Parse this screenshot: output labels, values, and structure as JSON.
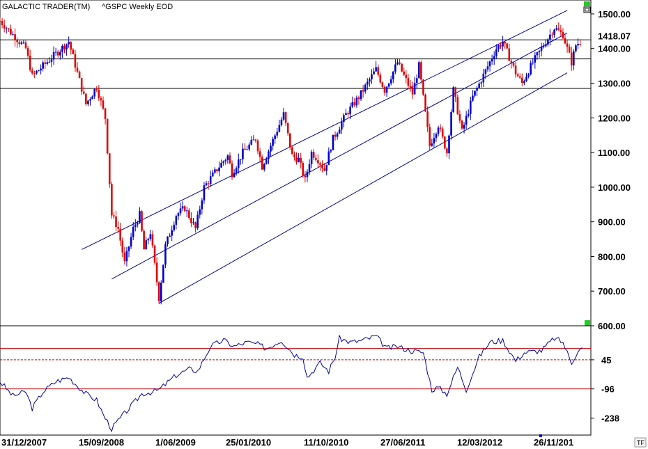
{
  "header": {
    "brand": "GALACTIC TRADER(TM)",
    "symbol": "^GSPC Weekly EOD"
  },
  "corner_label": "TF",
  "colors": {
    "up": "#0000cc",
    "down": "#e00000",
    "level": "#000000",
    "channel": "#0000aa",
    "osc_line": "#0000aa",
    "osc_ref": "#cc0000",
    "marker": "#22cc22"
  },
  "chart_data": [
    {
      "type": "candlestick",
      "title": "^GSPC Weekly EOD",
      "ylim": [
        600,
        1520
      ],
      "y_ticks": [
        "1500.00",
        "1400.00",
        "1300.00",
        "1200.00",
        "1100.00",
        "1000.00",
        "900.00",
        "800.00",
        "700.00",
        "600.00"
      ],
      "x_labels": [
        "31/12/2007",
        "15/09/2008",
        "1/06/2009",
        "25/01/2010",
        "11/10/2010",
        "27/06/2011",
        "12/03/2012",
        "26/11/201"
      ],
      "last_value_label": "1418.07",
      "horizontal_levels": [
        1425,
        1370,
        1285
      ],
      "channel_lines": [
        {
          "from": [
            "2008-06-30",
            820
          ],
          "to": [
            "2012-10-29",
            1510
          ]
        },
        {
          "from": [
            "2008-10-06",
            735
          ],
          "to": [
            "2012-10-29",
            1445
          ]
        },
        {
          "from": [
            "2009-03-09",
            665
          ],
          "to": [
            "2012-10-29",
            1330
          ]
        }
      ],
      "anchors": [
        [
          "2007-10-08",
          1480
        ],
        [
          "2007-12-31",
          1400
        ],
        [
          "2008-01-21",
          1320
        ],
        [
          "2008-02-25",
          1350
        ],
        [
          "2008-05-19",
          1420
        ],
        [
          "2008-07-14",
          1240
        ],
        [
          "2008-08-18",
          1290
        ],
        [
          "2008-09-15",
          1200
        ],
        [
          "2008-10-06",
          920
        ],
        [
          "2008-10-27",
          880
        ],
        [
          "2008-11-17",
          780
        ],
        [
          "2008-12-15",
          880
        ],
        [
          "2009-01-05",
          920
        ],
        [
          "2009-01-19",
          820
        ],
        [
          "2009-02-09",
          870
        ],
        [
          "2009-03-09",
          680
        ],
        [
          "2009-03-30",
          830
        ],
        [
          "2009-05-04",
          920
        ],
        [
          "2009-06-01",
          940
        ],
        [
          "2009-07-06",
          880
        ],
        [
          "2009-08-03",
          1000
        ],
        [
          "2009-09-21",
          1060
        ],
        [
          "2009-10-19",
          1090
        ],
        [
          "2009-11-02",
          1040
        ],
        [
          "2009-12-07",
          1100
        ],
        [
          "2010-01-18",
          1140
        ],
        [
          "2010-02-08",
          1060
        ],
        [
          "2010-04-19",
          1210
        ],
        [
          "2010-05-17",
          1090
        ],
        [
          "2010-06-07",
          1080
        ],
        [
          "2010-06-28",
          1020
        ],
        [
          "2010-07-19",
          1100
        ],
        [
          "2010-08-09",
          1080
        ],
        [
          "2010-08-30",
          1050
        ],
        [
          "2010-09-27",
          1140
        ],
        [
          "2010-11-08",
          1210
        ],
        [
          "2010-12-20",
          1260
        ],
        [
          "2011-02-14",
          1340
        ],
        [
          "2011-03-14",
          1280
        ],
        [
          "2011-04-25",
          1360
        ],
        [
          "2011-06-13",
          1270
        ],
        [
          "2011-07-04",
          1350
        ],
        [
          "2011-08-08",
          1120
        ],
        [
          "2011-09-05",
          1180
        ],
        [
          "2011-10-03",
          1100
        ],
        [
          "2011-10-24",
          1280
        ],
        [
          "2011-11-21",
          1160
        ],
        [
          "2011-12-26",
          1260
        ],
        [
          "2012-01-23",
          1310
        ],
        [
          "2012-03-12",
          1400
        ],
        [
          "2012-04-02",
          1420
        ],
        [
          "2012-05-14",
          1330
        ],
        [
          "2012-06-04",
          1300
        ],
        [
          "2012-07-09",
          1360
        ],
        [
          "2012-08-13",
          1410
        ],
        [
          "2012-09-17",
          1460
        ],
        [
          "2012-10-15",
          1440
        ],
        [
          "2012-11-12",
          1360
        ],
        [
          "2012-11-26",
          1410
        ],
        [
          "2012-12-10",
          1420
        ]
      ]
    },
    {
      "type": "line",
      "title": "oscillator",
      "y_ticks": [
        "45",
        "-96",
        "-238"
      ],
      "reference_levels": [
        100,
        45,
        -96
      ],
      "anchors": [
        [
          "2007-10-08",
          -60
        ],
        [
          "2007-11-19",
          -130
        ],
        [
          "2007-12-31",
          -110
        ],
        [
          "2008-01-21",
          -190
        ],
        [
          "2008-02-25",
          -110
        ],
        [
          "2008-04-07",
          -60
        ],
        [
          "2008-05-19",
          -40
        ],
        [
          "2008-07-14",
          -120
        ],
        [
          "2008-08-18",
          -150
        ],
        [
          "2008-09-08",
          -220
        ],
        [
          "2008-10-06",
          -290
        ],
        [
          "2008-10-27",
          -250
        ],
        [
          "2008-12-08",
          -180
        ],
        [
          "2009-01-12",
          -120
        ],
        [
          "2009-02-16",
          -110
        ],
        [
          "2009-03-09",
          -100
        ],
        [
          "2009-05-04",
          -30
        ],
        [
          "2009-06-15",
          0
        ],
        [
          "2009-07-13",
          -10
        ],
        [
          "2009-08-24",
          110
        ],
        [
          "2009-10-05",
          140
        ],
        [
          "2009-11-09",
          110
        ],
        [
          "2009-12-21",
          130
        ],
        [
          "2010-01-25",
          120
        ],
        [
          "2010-02-22",
          100
        ],
        [
          "2010-04-12",
          140
        ],
        [
          "2010-05-24",
          70
        ],
        [
          "2010-06-21",
          60
        ],
        [
          "2010-07-05",
          -40
        ],
        [
          "2010-08-16",
          30
        ],
        [
          "2010-09-13",
          -10
        ],
        [
          "2010-10-04",
          60
        ],
        [
          "2010-10-18",
          150
        ],
        [
          "2010-11-22",
          130
        ],
        [
          "2011-01-03",
          140
        ],
        [
          "2011-02-14",
          160
        ],
        [
          "2011-03-21",
          100
        ],
        [
          "2011-04-25",
          110
        ],
        [
          "2011-06-06",
          90
        ],
        [
          "2011-07-18",
          80
        ],
        [
          "2011-08-15",
          -100
        ],
        [
          "2011-09-05",
          -90
        ],
        [
          "2011-10-03",
          -120
        ],
        [
          "2011-11-07",
          10
        ],
        [
          "2011-12-05",
          -100
        ],
        [
          "2012-01-16",
          60
        ],
        [
          "2012-02-20",
          130
        ],
        [
          "2012-04-02",
          140
        ],
        [
          "2012-05-14",
          40
        ],
        [
          "2012-06-11",
          80
        ],
        [
          "2012-08-06",
          90
        ],
        [
          "2012-09-17",
          150
        ],
        [
          "2012-10-15",
          130
        ],
        [
          "2012-11-12",
          30
        ],
        [
          "2012-12-03",
          90
        ],
        [
          "2012-12-17",
          100
        ]
      ]
    }
  ]
}
